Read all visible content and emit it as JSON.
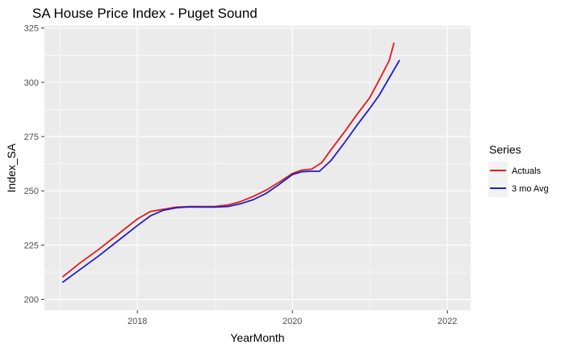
{
  "chart_data": {
    "type": "line",
    "title": "SA House Price Index - Puget Sound",
    "xlabel": "YearMonth",
    "ylabel": "Index_SA",
    "xlim": [
      2016.8,
      2022.3
    ],
    "ylim": [
      195,
      326
    ],
    "x_ticks": [
      2018,
      2020,
      2022
    ],
    "x_tick_labels": [
      "2018",
      "2020",
      "2022"
    ],
    "y_ticks": [
      200,
      225,
      250,
      275,
      300,
      325
    ],
    "y_tick_labels": [
      "200",
      "225",
      "250",
      "275",
      "300",
      "325"
    ],
    "grid": true,
    "legend": {
      "title": "Series",
      "position": "right"
    },
    "series": [
      {
        "name": "Actuals",
        "color": "#e41a1c",
        "x": [
          2017.04,
          2017.25,
          2017.5,
          2017.75,
          2018.0,
          2018.17,
          2018.33,
          2018.5,
          2018.67,
          2018.83,
          2019.0,
          2019.17,
          2019.33,
          2019.5,
          2019.67,
          2019.83,
          2020.0,
          2020.12,
          2020.25,
          2020.38,
          2020.5,
          2020.67,
          2020.83,
          2021.0,
          2021.12,
          2021.25,
          2021.31
        ],
        "y": [
          210.5,
          216.5,
          223,
          230,
          237,
          240.5,
          241.5,
          242.5,
          242.8,
          242.8,
          242.8,
          243.5,
          245,
          247.5,
          250.5,
          254,
          258,
          259.5,
          260,
          263,
          269,
          277,
          285,
          293,
          301,
          310,
          318
        ]
      },
      {
        "name": "3 mo Avg",
        "color": "#1f1fc8",
        "x": [
          2017.04,
          2017.25,
          2017.5,
          2017.75,
          2018.0,
          2018.17,
          2018.33,
          2018.5,
          2018.67,
          2018.83,
          2019.0,
          2019.17,
          2019.33,
          2019.5,
          2019.67,
          2019.83,
          2020.0,
          2020.12,
          2020.25,
          2020.35,
          2020.5,
          2020.67,
          2020.83,
          2021.0,
          2021.12,
          2021.25,
          2021.38
        ],
        "y": [
          208,
          213.5,
          220,
          227,
          234,
          238.5,
          241,
          242.2,
          242.6,
          242.5,
          242.5,
          242.8,
          244,
          246,
          249,
          253,
          257.5,
          258.8,
          259,
          259,
          264,
          272,
          280,
          288,
          294,
          302,
          310
        ]
      }
    ]
  }
}
